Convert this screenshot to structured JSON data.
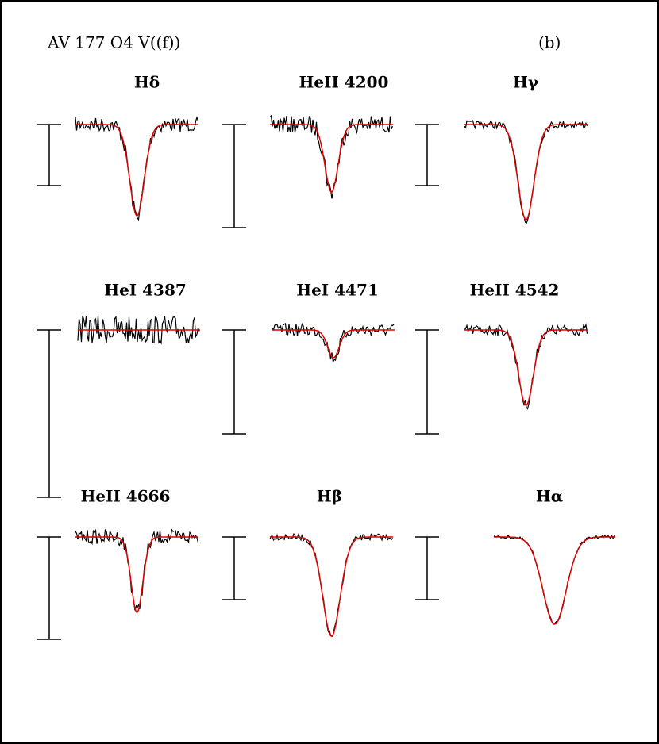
{
  "figure": {
    "title": "AV 177 O4 V((f))",
    "panel_label": "(b)",
    "panels": [
      {
        "label": "Hδ"
      },
      {
        "label": "HeII 4200"
      },
      {
        "label": "Hγ"
      },
      {
        "label": "HeI 4387"
      },
      {
        "label": "HeI 4471"
      },
      {
        "label": "HeII 4542"
      },
      {
        "label": "HeII 4666"
      },
      {
        "label": "Hβ"
      },
      {
        "label": "Hα"
      }
    ]
  }
}
